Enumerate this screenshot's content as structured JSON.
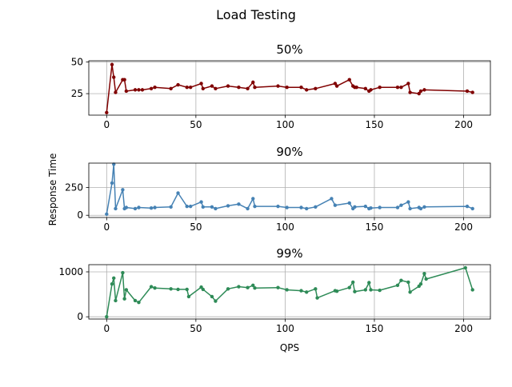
{
  "figure": {
    "title": "Load Testing",
    "ylabel": "Response Time",
    "xlabel": "QPS"
  },
  "chart_data": [
    {
      "type": "line",
      "title": "50%",
      "color": "#800000",
      "grid": true,
      "xlim": [
        -10,
        215
      ],
      "ylim": [
        8,
        51
      ],
      "xticks": [
        0,
        50,
        100,
        150,
        200
      ],
      "yticks": [
        25,
        50
      ],
      "x": [
        0,
        3,
        4,
        5,
        9,
        10,
        11,
        16,
        18,
        20,
        25,
        27,
        36,
        40,
        45,
        47,
        53,
        54,
        59,
        61,
        68,
        74,
        79,
        82,
        83,
        96,
        101,
        109,
        112,
        117,
        128,
        129,
        136,
        138,
        139,
        140,
        145,
        147,
        148,
        153,
        163,
        165,
        169,
        170,
        175,
        176,
        178,
        202,
        205
      ],
      "y": [
        10,
        48,
        38,
        26,
        36,
        36,
        27,
        28,
        28,
        28,
        29,
        30,
        29,
        32,
        30,
        30,
        33,
        29,
        31,
        29,
        31,
        30,
        29,
        34,
        30,
        31,
        30,
        30,
        28,
        29,
        33,
        31,
        36,
        31,
        30,
        30,
        29,
        27,
        28,
        30,
        30,
        30,
        33,
        26,
        25,
        27,
        28,
        27,
        26
      ]
    },
    {
      "type": "line",
      "title": "90%",
      "color": "#4682b4",
      "grid": true,
      "xlim": [
        -10,
        215
      ],
      "ylim": [
        -20,
        470
      ],
      "xticks": [
        0,
        50,
        100,
        150,
        200
      ],
      "yticks": [
        0,
        250
      ],
      "x": [
        0,
        3,
        4,
        5,
        9,
        10,
        11,
        16,
        18,
        25,
        27,
        36,
        40,
        45,
        47,
        53,
        54,
        59,
        61,
        68,
        74,
        79,
        82,
        83,
        96,
        101,
        109,
        112,
        117,
        126,
        128,
        136,
        138,
        139,
        145,
        147,
        148,
        153,
        163,
        165,
        169,
        170,
        175,
        176,
        178,
        202,
        205
      ],
      "y": [
        10,
        290,
        460,
        60,
        230,
        60,
        70,
        60,
        70,
        65,
        70,
        75,
        200,
        80,
        80,
        120,
        75,
        75,
        60,
        85,
        100,
        60,
        150,
        80,
        80,
        70,
        70,
        60,
        75,
        150,
        90,
        110,
        60,
        75,
        80,
        60,
        65,
        70,
        70,
        90,
        120,
        60,
        70,
        60,
        75,
        80,
        60
      ]
    },
    {
      "type": "line",
      "title": "99%",
      "color": "#2e8b57",
      "grid": true,
      "xlim": [
        -10,
        215
      ],
      "ylim": [
        -50,
        1160
      ],
      "xticks": [
        0,
        50,
        100,
        150,
        200
      ],
      "yticks": [
        0,
        1000
      ],
      "x": [
        0,
        3,
        4,
        5,
        9,
        10,
        11,
        16,
        18,
        25,
        27,
        36,
        40,
        45,
        46,
        53,
        54,
        59,
        61,
        68,
        74,
        79,
        82,
        83,
        96,
        101,
        109,
        112,
        117,
        118,
        128,
        129,
        136,
        138,
        139,
        145,
        147,
        148,
        153,
        163,
        165,
        169,
        170,
        175,
        176,
        178,
        179,
        201,
        205
      ],
      "y": [
        0,
        730,
        860,
        360,
        980,
        400,
        600,
        360,
        320,
        670,
        640,
        620,
        610,
        610,
        450,
        660,
        610,
        450,
        350,
        620,
        670,
        650,
        700,
        640,
        650,
        600,
        580,
        550,
        620,
        420,
        580,
        570,
        650,
        770,
        560,
        600,
        760,
        600,
        590,
        700,
        810,
        770,
        550,
        680,
        730,
        960,
        840,
        1090,
        600
      ]
    }
  ]
}
